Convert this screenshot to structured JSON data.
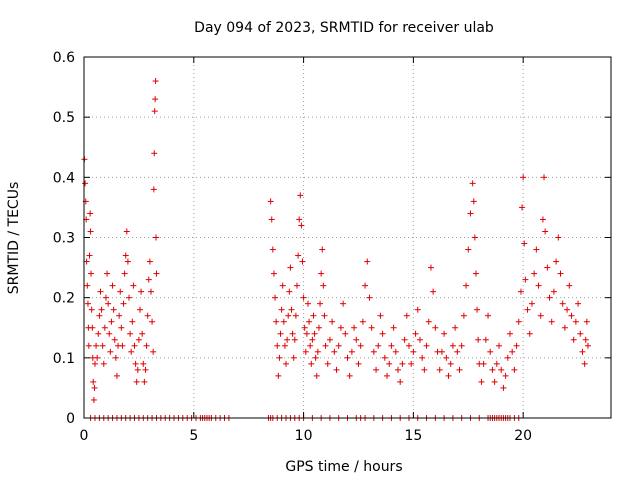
{
  "chart_data": {
    "type": "scatter",
    "title": "Day 094 of 2023, SRMTID for receiver ulab",
    "xlabel": "GPS time / hours",
    "ylabel": "SRMTID / TECUs",
    "xlim": [
      0,
      24
    ],
    "ylim": [
      0,
      0.6
    ],
    "xticks": [
      0,
      5,
      10,
      15,
      20
    ],
    "yticks": [
      0,
      0.1,
      0.2,
      0.3,
      0.4,
      0.5,
      0.6
    ],
    "xtick_labels": [
      "0",
      "5",
      "10",
      "15",
      "20"
    ],
    "ytick_labels": [
      "0",
      "0.1",
      "0.2",
      "0.3",
      "0.4",
      "0.5",
      "0.6"
    ],
    "grid": true,
    "marker": "+",
    "color": "#e00000",
    "series": [
      {
        "name": "SRMTID",
        "points": [
          [
            0.02,
            0.43
          ],
          [
            0.05,
            0.39
          ],
          [
            0.08,
            0.36
          ],
          [
            0.1,
            0.33
          ],
          [
            0.12,
            0.26
          ],
          [
            0.15,
            0.22
          ],
          [
            0.18,
            0.19
          ],
          [
            0.2,
            0.15
          ],
          [
            0.22,
            0.12
          ],
          [
            0.25,
            0.27
          ],
          [
            0.28,
            0.34
          ],
          [
            0.3,
            0.31
          ],
          [
            0.32,
            0.24
          ],
          [
            0.35,
            0.18
          ],
          [
            0.38,
            0.15
          ],
          [
            0.4,
            0.1
          ],
          [
            0.42,
            0.06
          ],
          [
            0.45,
            0.03
          ],
          [
            0.48,
            0.05
          ],
          [
            0.5,
            0.09
          ],
          [
            0.55,
            0.12
          ],
          [
            0.6,
            0.1
          ],
          [
            0.65,
            0.14
          ],
          [
            0.7,
            0.17
          ],
          [
            0.75,
            0.21
          ],
          [
            0.8,
            0.18
          ],
          [
            0.85,
            0.12
          ],
          [
            0.9,
            0.09
          ],
          [
            0.95,
            0.15
          ],
          [
            1.0,
            0.2
          ],
          [
            1.05,
            0.24
          ],
          [
            1.1,
            0.19
          ],
          [
            1.15,
            0.14
          ],
          [
            1.2,
            0.11
          ],
          [
            1.25,
            0.16
          ],
          [
            1.3,
            0.22
          ],
          [
            1.35,
            0.18
          ],
          [
            1.4,
            0.13
          ],
          [
            1.45,
            0.1
          ],
          [
            1.5,
            0.07
          ],
          [
            1.55,
            0.12
          ],
          [
            1.6,
            0.17
          ],
          [
            1.65,
            0.21
          ],
          [
            1.7,
            0.15
          ],
          [
            1.75,
            0.12
          ],
          [
            1.8,
            0.19
          ],
          [
            1.85,
            0.24
          ],
          [
            1.9,
            0.27
          ],
          [
            1.95,
            0.31
          ],
          [
            2.0,
            0.26
          ],
          [
            2.05,
            0.2
          ],
          [
            2.1,
            0.14
          ],
          [
            2.15,
            0.11
          ],
          [
            2.2,
            0.16
          ],
          [
            2.25,
            0.22
          ],
          [
            2.3,
            0.12
          ],
          [
            2.35,
            0.09
          ],
          [
            2.4,
            0.06
          ],
          [
            2.45,
            0.08
          ],
          [
            2.5,
            0.13
          ],
          [
            2.55,
            0.18
          ],
          [
            2.6,
            0.21
          ],
          [
            2.65,
            0.14
          ],
          [
            2.7,
            0.09
          ],
          [
            2.75,
            0.06
          ],
          [
            2.8,
            0.08
          ],
          [
            2.85,
            0.12
          ],
          [
            2.9,
            0.17
          ],
          [
            2.95,
            0.23
          ],
          [
            3.0,
            0.26
          ],
          [
            3.05,
            0.21
          ],
          [
            3.1,
            0.16
          ],
          [
            3.15,
            0.11
          ],
          [
            3.18,
            0.38
          ],
          [
            3.2,
            0.44
          ],
          [
            3.22,
            0.51
          ],
          [
            3.24,
            0.53
          ],
          [
            3.26,
            0.56
          ],
          [
            3.28,
            0.3
          ],
          [
            3.3,
            0.24
          ],
          [
            8.5,
            0.36
          ],
          [
            8.55,
            0.33
          ],
          [
            8.6,
            0.28
          ],
          [
            8.65,
            0.24
          ],
          [
            8.7,
            0.2
          ],
          [
            8.75,
            0.16
          ],
          [
            8.8,
            0.12
          ],
          [
            8.85,
            0.07
          ],
          [
            8.9,
            0.1
          ],
          [
            8.95,
            0.14
          ],
          [
            9.0,
            0.18
          ],
          [
            9.05,
            0.22
          ],
          [
            9.1,
            0.16
          ],
          [
            9.15,
            0.12
          ],
          [
            9.2,
            0.09
          ],
          [
            9.25,
            0.13
          ],
          [
            9.3,
            0.17
          ],
          [
            9.35,
            0.21
          ],
          [
            9.4,
            0.25
          ],
          [
            9.45,
            0.18
          ],
          [
            9.5,
            0.14
          ],
          [
            9.55,
            0.1
          ],
          [
            9.6,
            0.13
          ],
          [
            9.65,
            0.17
          ],
          [
            9.7,
            0.22
          ],
          [
            9.75,
            0.27
          ],
          [
            9.8,
            0.33
          ],
          [
            9.85,
            0.37
          ],
          [
            9.9,
            0.32
          ],
          [
            9.95,
            0.26
          ],
          [
            10.0,
            0.2
          ],
          [
            10.05,
            0.15
          ],
          [
            10.1,
            0.11
          ],
          [
            10.15,
            0.14
          ],
          [
            10.2,
            0.19
          ],
          [
            10.25,
            0.16
          ],
          [
            10.3,
            0.12
          ],
          [
            10.35,
            0.09
          ],
          [
            10.4,
            0.13
          ],
          [
            10.45,
            0.17
          ],
          [
            10.5,
            0.14
          ],
          [
            10.55,
            0.1
          ],
          [
            10.6,
            0.07
          ],
          [
            10.65,
            0.11
          ],
          [
            10.7,
            0.15
          ],
          [
            10.75,
            0.19
          ],
          [
            10.8,
            0.24
          ],
          [
            10.85,
            0.28
          ],
          [
            10.9,
            0.22
          ],
          [
            10.95,
            0.17
          ],
          [
            11.0,
            0.12
          ],
          [
            11.1,
            0.09
          ],
          [
            11.2,
            0.13
          ],
          [
            11.3,
            0.16
          ],
          [
            11.4,
            0.11
          ],
          [
            11.5,
            0.08
          ],
          [
            11.6,
            0.12
          ],
          [
            11.7,
            0.15
          ],
          [
            11.8,
            0.19
          ],
          [
            11.9,
            0.14
          ],
          [
            12.0,
            0.1
          ],
          [
            12.1,
            0.07
          ],
          [
            12.2,
            0.11
          ],
          [
            12.3,
            0.15
          ],
          [
            12.4,
            0.13
          ],
          [
            12.5,
            0.09
          ],
          [
            12.6,
            0.12
          ],
          [
            12.7,
            0.16
          ],
          [
            12.8,
            0.22
          ],
          [
            12.9,
            0.26
          ],
          [
            13.0,
            0.2
          ],
          [
            13.1,
            0.15
          ],
          [
            13.2,
            0.11
          ],
          [
            13.3,
            0.08
          ],
          [
            13.4,
            0.12
          ],
          [
            13.5,
            0.17
          ],
          [
            13.6,
            0.14
          ],
          [
            13.7,
            0.1
          ],
          [
            13.8,
            0.07
          ],
          [
            13.9,
            0.09
          ],
          [
            14.0,
            0.12
          ],
          [
            14.1,
            0.15
          ],
          [
            14.2,
            0.11
          ],
          [
            14.3,
            0.08
          ],
          [
            14.4,
            0.06
          ],
          [
            14.5,
            0.09
          ],
          [
            14.6,
            0.13
          ],
          [
            14.7,
            0.17
          ],
          [
            14.8,
            0.12
          ],
          [
            14.9,
            0.09
          ],
          [
            15.0,
            0.11
          ],
          [
            15.1,
            0.14
          ],
          [
            15.2,
            0.18
          ],
          [
            15.3,
            0.13
          ],
          [
            15.4,
            0.1
          ],
          [
            15.5,
            0.08
          ],
          [
            15.6,
            0.12
          ],
          [
            15.7,
            0.16
          ],
          [
            15.8,
            0.25
          ],
          [
            15.9,
            0.21
          ],
          [
            16.0,
            0.15
          ],
          [
            16.1,
            0.11
          ],
          [
            16.2,
            0.08
          ],
          [
            16.3,
            0.11
          ],
          [
            16.4,
            0.14
          ],
          [
            16.5,
            0.1
          ],
          [
            16.6,
            0.07
          ],
          [
            16.7,
            0.09
          ],
          [
            16.8,
            0.12
          ],
          [
            16.9,
            0.15
          ],
          [
            17.0,
            0.11
          ],
          [
            17.1,
            0.08
          ],
          [
            17.2,
            0.12
          ],
          [
            17.3,
            0.17
          ],
          [
            17.4,
            0.22
          ],
          [
            17.5,
            0.28
          ],
          [
            17.6,
            0.34
          ],
          [
            17.7,
            0.39
          ],
          [
            17.75,
            0.36
          ],
          [
            17.8,
            0.3
          ],
          [
            17.85,
            0.24
          ],
          [
            17.9,
            0.18
          ],
          [
            17.95,
            0.13
          ],
          [
            18.0,
            0.09
          ],
          [
            18.1,
            0.06
          ],
          [
            18.2,
            0.09
          ],
          [
            18.3,
            0.13
          ],
          [
            18.4,
            0.17
          ],
          [
            18.5,
            0.11
          ],
          [
            18.6,
            0.08
          ],
          [
            18.7,
            0.06
          ],
          [
            18.8,
            0.09
          ],
          [
            18.9,
            0.12
          ],
          [
            19.0,
            0.08
          ],
          [
            19.1,
            0.05
          ],
          [
            19.2,
            0.07
          ],
          [
            19.3,
            0.1
          ],
          [
            19.4,
            0.14
          ],
          [
            19.5,
            0.11
          ],
          [
            19.6,
            0.08
          ],
          [
            19.7,
            0.12
          ],
          [
            19.8,
            0.16
          ],
          [
            19.9,
            0.21
          ],
          [
            19.95,
            0.35
          ],
          [
            20.0,
            0.4
          ],
          [
            20.05,
            0.29
          ],
          [
            20.1,
            0.23
          ],
          [
            20.2,
            0.18
          ],
          [
            20.3,
            0.14
          ],
          [
            20.4,
            0.19
          ],
          [
            20.5,
            0.24
          ],
          [
            20.6,
            0.28
          ],
          [
            20.7,
            0.22
          ],
          [
            20.8,
            0.17
          ],
          [
            20.9,
            0.33
          ],
          [
            20.95,
            0.4
          ],
          [
            21.0,
            0.31
          ],
          [
            21.1,
            0.25
          ],
          [
            21.2,
            0.2
          ],
          [
            21.3,
            0.16
          ],
          [
            21.4,
            0.21
          ],
          [
            21.5,
            0.26
          ],
          [
            21.6,
            0.3
          ],
          [
            21.7,
            0.24
          ],
          [
            21.8,
            0.19
          ],
          [
            21.9,
            0.15
          ],
          [
            22.0,
            0.18
          ],
          [
            22.1,
            0.22
          ],
          [
            22.2,
            0.17
          ],
          [
            22.3,
            0.13
          ],
          [
            22.4,
            0.16
          ],
          [
            22.5,
            0.19
          ],
          [
            22.6,
            0.14
          ],
          [
            22.7,
            0.11
          ],
          [
            22.8,
            0.09
          ],
          [
            22.85,
            0.13
          ],
          [
            22.9,
            0.16
          ],
          [
            22.95,
            0.12
          ]
        ]
      }
    ],
    "zero_points_x": [
      0.3,
      0.5,
      0.7,
      0.9,
      1.1,
      1.3,
      1.5,
      1.7,
      1.9,
      2.1,
      2.3,
      2.5,
      2.7,
      2.9,
      3.1,
      3.3,
      3.5,
      3.7,
      3.9,
      4.1,
      4.3,
      4.5,
      4.7,
      4.9,
      5.1,
      5.3,
      5.4,
      5.5,
      5.6,
      5.7,
      5.8,
      6.0,
      6.2,
      6.4,
      6.6,
      8.4,
      8.5,
      8.6,
      8.8,
      9.0,
      9.2,
      9.4,
      9.6,
      9.8,
      10.0,
      10.4,
      10.8,
      11.2,
      11.6,
      12.0,
      12.4,
      12.6,
      12.8,
      13.2,
      13.6,
      14.0,
      14.4,
      14.8,
      15.2,
      15.6,
      16.0,
      16.4,
      16.8,
      17.2,
      17.6,
      18.0,
      18.4,
      18.5,
      18.6,
      18.7,
      18.8,
      18.9,
      19.0,
      19.1,
      19.2,
      19.3,
      19.4,
      19.6,
      19.8
    ]
  }
}
